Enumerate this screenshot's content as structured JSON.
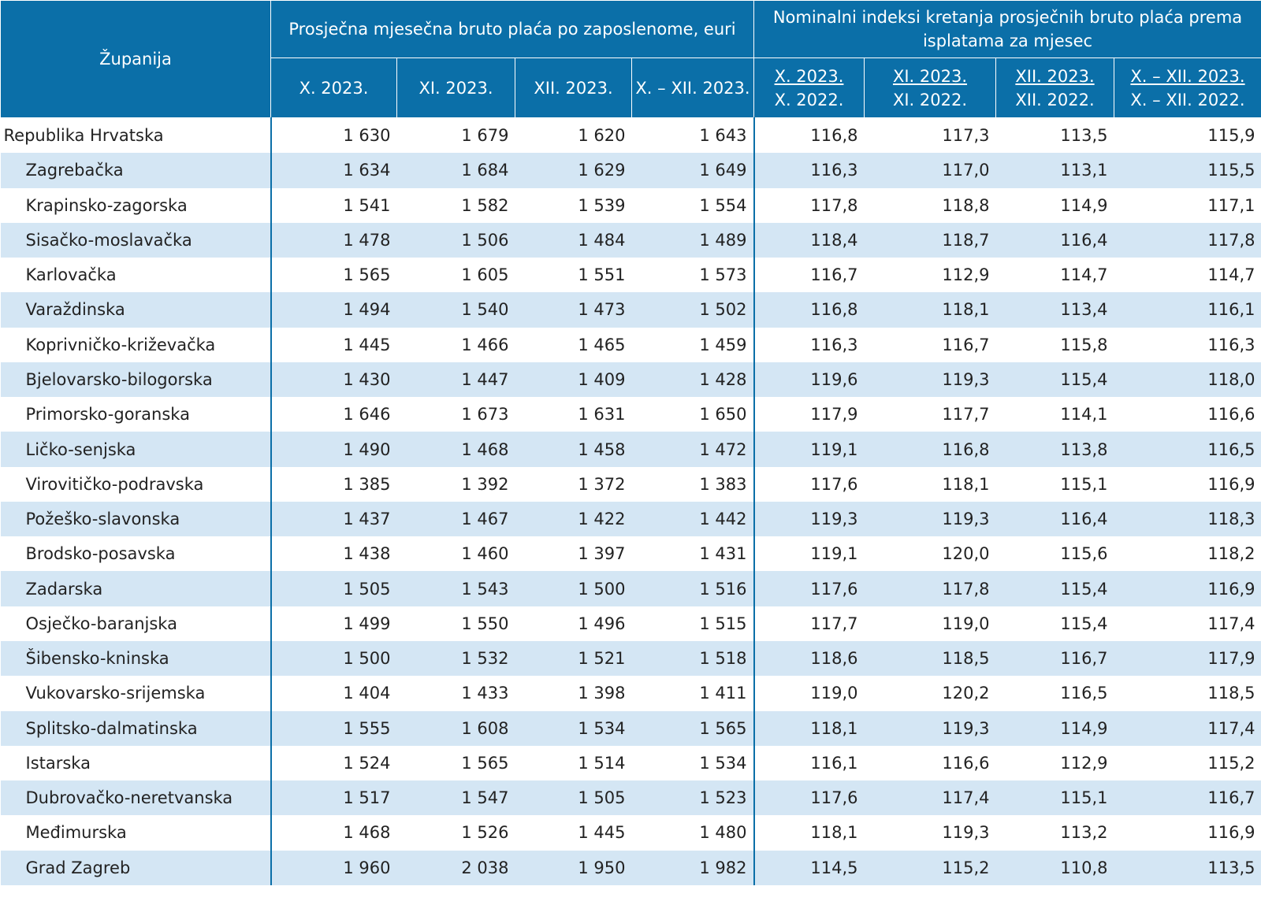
{
  "header": {
    "county": "Županija",
    "group_wage": "Prosječna mjesečna bruto plaća po zaposlenome, euri",
    "group_index": "Nominalni indeksi kretanja prosječnih bruto plaća prema isplatama za mjesec",
    "wage_cols": [
      "X. 2023.",
      "XI. 2023.",
      "XII. 2023.",
      "X. – XII. 2023."
    ],
    "index_cols": [
      {
        "top": "X. 2023.",
        "bottom": "X. 2022."
      },
      {
        "top": "XI. 2023.",
        "bottom": "XI. 2022."
      },
      {
        "top": "XII. 2023.",
        "bottom": "XII. 2022."
      },
      {
        "top": "X. – XII. 2023.",
        "bottom": "X. – XII. 2022."
      }
    ]
  },
  "rows": [
    {
      "name": "Republika Hrvatska",
      "w": [
        "1 630",
        "1 679",
        "1 620",
        "1 643"
      ],
      "i": [
        "116,8",
        "117,3",
        "113,5",
        "115,9"
      ]
    },
    {
      "name": "Zagrebačka",
      "w": [
        "1 634",
        "1 684",
        "1 629",
        "1 649"
      ],
      "i": [
        "116,3",
        "117,0",
        "113,1",
        "115,5"
      ]
    },
    {
      "name": "Krapinsko-zagorska",
      "w": [
        "1 541",
        "1 582",
        "1 539",
        "1 554"
      ],
      "i": [
        "117,8",
        "118,8",
        "114,9",
        "117,1"
      ]
    },
    {
      "name": "Sisačko-moslavačka",
      "w": [
        "1 478",
        "1 506",
        "1 484",
        "1 489"
      ],
      "i": [
        "118,4",
        "118,7",
        "116,4",
        "117,8"
      ]
    },
    {
      "name": "Karlovačka",
      "w": [
        "1 565",
        "1 605",
        "1 551",
        "1 573"
      ],
      "i": [
        "116,7",
        "112,9",
        "114,7",
        "114,7"
      ]
    },
    {
      "name": "Varaždinska",
      "w": [
        "1 494",
        "1 540",
        "1 473",
        "1 502"
      ],
      "i": [
        "116,8",
        "118,1",
        "113,4",
        "116,1"
      ]
    },
    {
      "name": "Koprivničko-križevačka",
      "w": [
        "1 445",
        "1 466",
        "1 465",
        "1 459"
      ],
      "i": [
        "116,3",
        "116,7",
        "115,8",
        "116,3"
      ]
    },
    {
      "name": "Bjelovarsko-bilogorska",
      "w": [
        "1 430",
        "1 447",
        "1 409",
        "1 428"
      ],
      "i": [
        "119,6",
        "119,3",
        "115,4",
        "118,0"
      ]
    },
    {
      "name": "Primorsko-goranska",
      "w": [
        "1 646",
        "1 673",
        "1 631",
        "1 650"
      ],
      "i": [
        "117,9",
        "117,7",
        "114,1",
        "116,6"
      ]
    },
    {
      "name": "Ličko-senjska",
      "w": [
        "1 490",
        "1 468",
        "1 458",
        "1 472"
      ],
      "i": [
        "119,1",
        "116,8",
        "113,8",
        "116,5"
      ]
    },
    {
      "name": "Virovitičko-podravska",
      "w": [
        "1 385",
        "1 392",
        "1 372",
        "1 383"
      ],
      "i": [
        "117,6",
        "118,1",
        "115,1",
        "116,9"
      ]
    },
    {
      "name": "Požeško-slavonska",
      "w": [
        "1 437",
        "1 467",
        "1 422",
        "1 442"
      ],
      "i": [
        "119,3",
        "119,3",
        "116,4",
        "118,3"
      ]
    },
    {
      "name": "Brodsko-posavska",
      "w": [
        "1 438",
        "1 460",
        "1 397",
        "1 431"
      ],
      "i": [
        "119,1",
        "120,0",
        "115,6",
        "118,2"
      ]
    },
    {
      "name": "Zadarska",
      "w": [
        "1 505",
        "1 543",
        "1 500",
        "1 516"
      ],
      "i": [
        "117,6",
        "117,8",
        "115,4",
        "116,9"
      ]
    },
    {
      "name": "Osječko-baranjska",
      "w": [
        "1 499",
        "1 550",
        "1 496",
        "1 515"
      ],
      "i": [
        "117,7",
        "119,0",
        "115,4",
        "117,4"
      ]
    },
    {
      "name": "Šibensko-kninska",
      "w": [
        "1 500",
        "1 532",
        "1 521",
        "1 518"
      ],
      "i": [
        "118,6",
        "118,5",
        "116,7",
        "117,9"
      ]
    },
    {
      "name": "Vukovarsko-srijemska",
      "w": [
        "1 404",
        "1 433",
        "1 398",
        "1 411"
      ],
      "i": [
        "119,0",
        "120,2",
        "116,5",
        "118,5"
      ]
    },
    {
      "name": "Splitsko-dalmatinska",
      "w": [
        "1 555",
        "1 608",
        "1 534",
        "1 565"
      ],
      "i": [
        "118,1",
        "119,3",
        "114,9",
        "117,4"
      ]
    },
    {
      "name": "Istarska",
      "w": [
        "1 524",
        "1 565",
        "1 514",
        "1 534"
      ],
      "i": [
        "116,1",
        "116,6",
        "112,9",
        "115,2"
      ]
    },
    {
      "name": "Dubrovačko-neretvanska",
      "w": [
        "1 517",
        "1 547",
        "1 505",
        "1 523"
      ],
      "i": [
        "117,6",
        "117,4",
        "115,1",
        "116,7"
      ]
    },
    {
      "name": "Međimurska",
      "w": [
        "1 468",
        "1 526",
        "1 445",
        "1 480"
      ],
      "i": [
        "118,1",
        "119,3",
        "113,2",
        "116,9"
      ]
    },
    {
      "name": "Grad Zagreb",
      "w": [
        "1 960",
        "2 038",
        "1 950",
        "1 982"
      ],
      "i": [
        "114,5",
        "115,2",
        "110,8",
        "113,5"
      ]
    }
  ]
}
